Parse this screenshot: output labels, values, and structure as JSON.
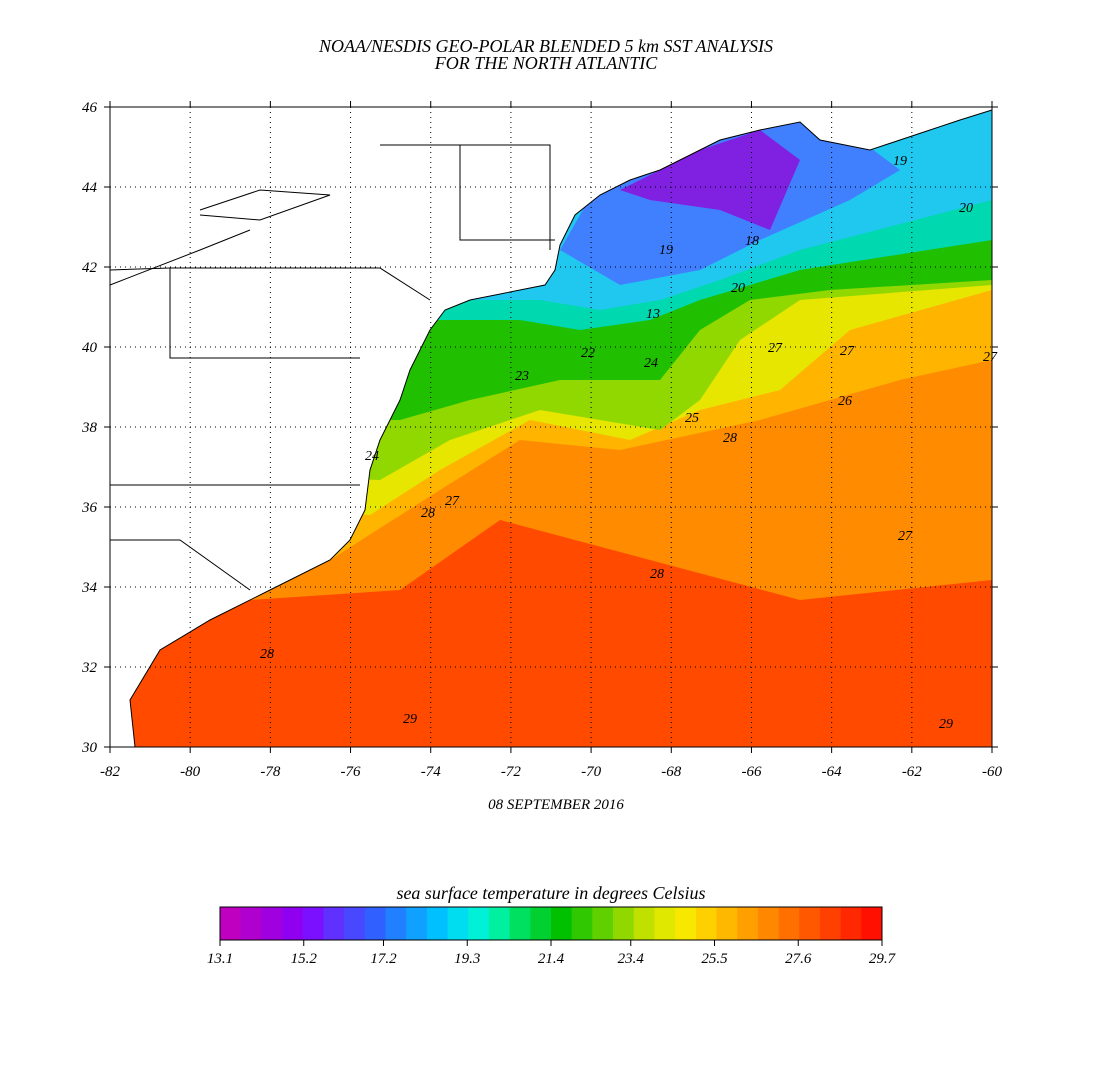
{
  "title": [
    "NOAA/NESDIS GEO-POLAR BLENDED 5 km SST ANALYSIS",
    "FOR THE NORTH ATLANTIC"
  ],
  "map": {
    "xlim": [
      -82,
      -60
    ],
    "ylim": [
      30,
      46
    ],
    "xticks": [
      -82,
      -80,
      -78,
      -76,
      -74,
      -72,
      -70,
      -68,
      -66,
      -64,
      -62,
      -60
    ],
    "yticks": [
      30,
      32,
      34,
      36,
      38,
      40,
      42,
      44,
      46
    ],
    "grid": true,
    "contour_labels": [
      24,
      23,
      22,
      24,
      25,
      28,
      27,
      27,
      27,
      26,
      20,
      19,
      18,
      13,
      19,
      20,
      28,
      27,
      28,
      28,
      29,
      29,
      27
    ]
  },
  "date": "08 SEPTEMBER 2016",
  "colorbar": {
    "label": "sea surface temperature in degrees Celsius",
    "lim": [
      13.1,
      29.7
    ],
    "ticks": [
      13.1,
      15.2,
      17.2,
      19.3,
      21.4,
      23.4,
      25.5,
      27.6,
      29.7
    ],
    "colors": [
      "#c000c0",
      "#b000d0",
      "#a000e0",
      "#9000f0",
      "#7a10ff",
      "#6030ff",
      "#4848ff",
      "#3060ff",
      "#2080ff",
      "#10a0ff",
      "#00c0ff",
      "#00dcf0",
      "#00f0d8",
      "#00f0a0",
      "#00e060",
      "#00d030",
      "#00c000",
      "#30c800",
      "#60d000",
      "#90d800",
      "#c0e000",
      "#e0e800",
      "#f8e800",
      "#ffd000",
      "#ffb800",
      "#ffa000",
      "#ff8800",
      "#ff7000",
      "#ff5800",
      "#ff4000",
      "#ff2800",
      "#ff1000"
    ]
  }
}
